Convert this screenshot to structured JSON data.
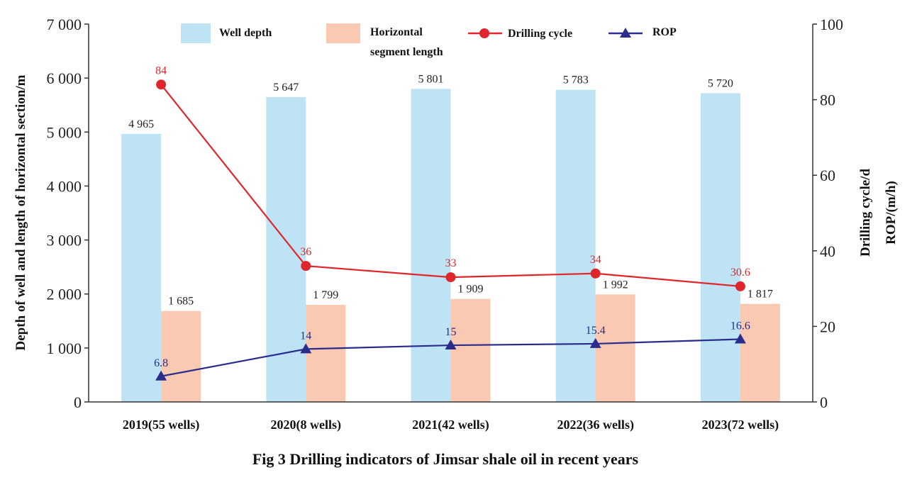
{
  "chart_data": {
    "type": "bar",
    "title": "Fig 3 Drilling indicators of Jimsar shale oil in recent years",
    "categories": [
      "2019(55 wells)",
      "2020(8 wells)",
      "2021(42 wells)",
      "2022(36 wells)",
      "2023(72 wells)"
    ],
    "ylabel_left": "Depth of well and length of horizontal section/m",
    "ylabel_right_1": "Drilling cycle/d",
    "ylabel_right_2": "ROP/(m/h)",
    "ylim_left": [
      0,
      7000
    ],
    "ylim_right": [
      0,
      100
    ],
    "left_ticks": [
      {
        "value": 0,
        "label": "0"
      },
      {
        "value": 1000,
        "label": "1 000"
      },
      {
        "value": 2000,
        "label": "2 000"
      },
      {
        "value": 3000,
        "label": "3 000"
      },
      {
        "value": 4000,
        "label": "4 000"
      },
      {
        "value": 5000,
        "label": "5 000"
      },
      {
        "value": 6000,
        "label": "6 000"
      },
      {
        "value": 7000,
        "label": "7 000"
      }
    ],
    "right_ticks": [
      {
        "value": 0,
        "label": "0"
      },
      {
        "value": 20,
        "label": "20"
      },
      {
        "value": 40,
        "label": "40"
      },
      {
        "value": 60,
        "label": "60"
      },
      {
        "value": 80,
        "label": "80"
      },
      {
        "value": 100,
        "label": "100"
      }
    ],
    "series": [
      {
        "name": "Well depth",
        "kind": "bar",
        "axis": "left",
        "color": "#bde3f4",
        "values": [
          4965,
          5647,
          5801,
          5783,
          5720
        ],
        "labels": [
          "4 965",
          "5 647",
          "5 801",
          "5 783",
          "5 720"
        ]
      },
      {
        "name_line1": "Horizontal",
        "name_line2": "segment length",
        "kind": "bar",
        "axis": "left",
        "color": "#f9c9b2",
        "values": [
          1685,
          1799,
          1909,
          1992,
          1817
        ],
        "labels": [
          "1 685",
          "1 799",
          "1 909",
          "1 992",
          "1 817"
        ]
      },
      {
        "name": "Drilling cycle",
        "kind": "line",
        "axis": "right",
        "color": "#e0262b",
        "marker": "circle",
        "values": [
          84,
          36,
          33,
          34,
          30.6
        ],
        "labels": [
          "84",
          "36",
          "33",
          "34",
          "30.6"
        ]
      },
      {
        "name": "ROP",
        "kind": "line",
        "axis": "right",
        "color": "#2a2d8c",
        "marker": "triangle",
        "values": [
          6.8,
          14,
          15,
          15.4,
          16.6
        ],
        "labels": [
          "6.8",
          "14",
          "15",
          "15.4",
          "16.6"
        ]
      }
    ]
  }
}
